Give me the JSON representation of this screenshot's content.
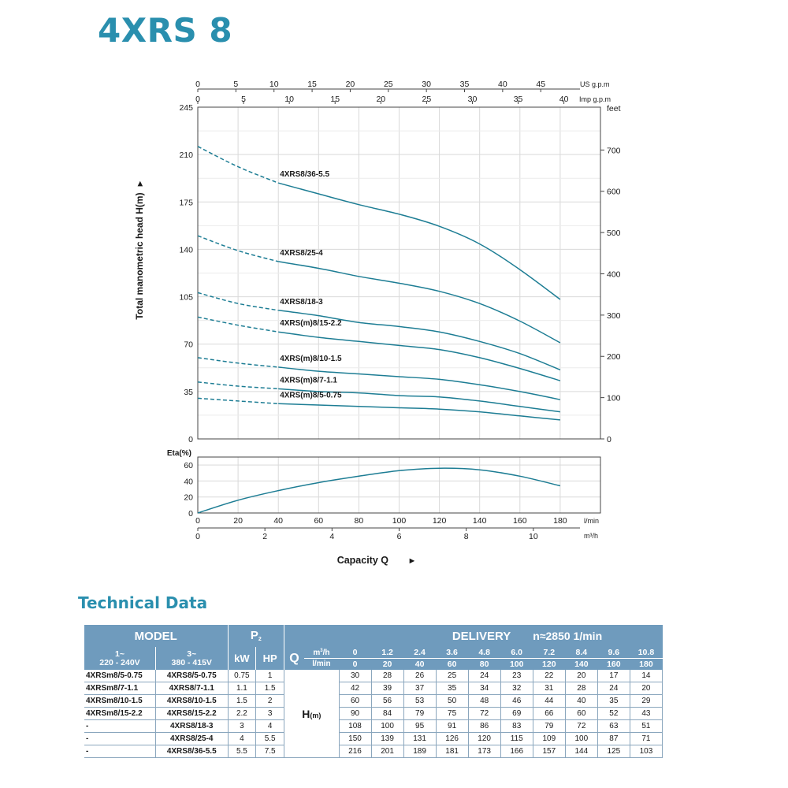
{
  "page": {
    "title": "4XRS 8",
    "section_title": "Technical Data"
  },
  "chart_data": {
    "type": "line",
    "head_chart": {
      "ylabel": "Total manometric head H(m)",
      "ylabel_arrow": "►",
      "ylim": [
        0,
        245
      ],
      "y_ticks": [
        0,
        35,
        70,
        105,
        140,
        175,
        210,
        245
      ],
      "right_axis_label": "feet",
      "right_ticks": [
        0,
        100,
        200,
        300,
        400,
        500,
        600,
        700
      ],
      "top_axes": [
        {
          "label": "US g.p.m",
          "ticks": [
            0,
            5,
            10,
            15,
            20,
            25,
            30,
            35,
            40,
            45
          ],
          "per_lmin": 0.26417
        },
        {
          "label": "Imp g.p.m",
          "ticks": [
            0,
            5,
            10,
            15,
            20,
            25,
            30,
            35,
            40
          ],
          "per_lmin": 0.21997
        }
      ],
      "xlim_lmin": [
        0,
        200
      ],
      "dashed_until_lmin": 40,
      "grid": true,
      "x_lmin": [
        0,
        20,
        40,
        60,
        80,
        100,
        120,
        140,
        160,
        180
      ],
      "series": [
        {
          "name": "4XRS8/36-5.5",
          "values": [
            216,
            201,
            189,
            181,
            173,
            166,
            157,
            144,
            125,
            103
          ]
        },
        {
          "name": "4XRS8/25-4",
          "values": [
            150,
            139,
            131,
            126,
            120,
            115,
            109,
            100,
            87,
            71
          ]
        },
        {
          "name": "4XRS8/18-3",
          "values": [
            108,
            100,
            95,
            91,
            86,
            83,
            79,
            72,
            63,
            51
          ]
        },
        {
          "name": "4XRS(m)8/15-2.2",
          "values": [
            90,
            84,
            79,
            75,
            72,
            69,
            66,
            60,
            52,
            43
          ]
        },
        {
          "name": "4XRS(m)8/10-1.5",
          "values": [
            60,
            56,
            53,
            50,
            48,
            46,
            44,
            40,
            35,
            29
          ]
        },
        {
          "name": "4XRS(m)8/7-1.1",
          "values": [
            42,
            39,
            37,
            35,
            34,
            32,
            31,
            28,
            24,
            20
          ]
        },
        {
          "name": "4XRS(m)8/5-0.75",
          "values": [
            30,
            28,
            26,
            25,
            24,
            23,
            22,
            20,
            17,
            14
          ]
        }
      ]
    },
    "eta_chart": {
      "ylabel": "Eta(%)",
      "ylim": [
        0,
        70
      ],
      "y_ticks": [
        0,
        20,
        40,
        60
      ],
      "x_lmin": [
        0,
        20,
        40,
        60,
        80,
        100,
        120,
        140,
        160,
        180
      ],
      "values": [
        0,
        16,
        28,
        38,
        46,
        53,
        56,
        54,
        46,
        34
      ]
    },
    "x_axis": {
      "lmin_label": "l/min",
      "lmin_ticks": [
        0,
        20,
        40,
        60,
        80,
        100,
        120,
        140,
        160,
        180
      ],
      "m3h_label": "m³/h",
      "m3h_ticks": [
        0,
        2,
        4,
        6,
        8,
        10
      ],
      "xlabel": "Capacity Q",
      "xlabel_arrow": "►"
    },
    "colors": {
      "curve": "#1d7d94",
      "grid": "#d9d9d9",
      "axis": "#444444",
      "header": "#6f9bbd"
    }
  },
  "table": {
    "model_header": "MODEL",
    "p2_header": "P",
    "p2_sub": "2",
    "delivery_header": "DELIVERY",
    "speed_header": "n≈2850 1/min",
    "single_phase": "1~",
    "single_phase_voltage": "220 - 240V",
    "three_phase": "3~",
    "three_phase_voltage": "380 - 415V",
    "kw": "kW",
    "hp": "HP",
    "q": "Q",
    "unit_m3h": "m",
    "unit_m3h_sup": "3",
    "unit_m3h_suffix": "/h",
    "unit_lmin": "l/min",
    "h_label": "H",
    "h_unit": "(m)",
    "q_m3h": [
      "0",
      "1.2",
      "2.4",
      "3.6",
      "4.8",
      "6.0",
      "7.2",
      "8.4",
      "9.6",
      "10.8"
    ],
    "q_lmin": [
      "0",
      "20",
      "40",
      "60",
      "80",
      "100",
      "120",
      "140",
      "160",
      "180"
    ],
    "rows": [
      {
        "m1": "4XRSm8/5-0.75",
        "m3": "4XRS8/5-0.75",
        "kw": "0.75",
        "hp": "1",
        "h": [
          "30",
          "28",
          "26",
          "25",
          "24",
          "23",
          "22",
          "20",
          "17",
          "14"
        ]
      },
      {
        "m1": "4XRSm8/7-1.1",
        "m3": "4XRS8/7-1.1",
        "kw": "1.1",
        "hp": "1.5",
        "h": [
          "42",
          "39",
          "37",
          "35",
          "34",
          "32",
          "31",
          "28",
          "24",
          "20"
        ]
      },
      {
        "m1": "4XRSm8/10-1.5",
        "m3": "4XRS8/10-1.5",
        "kw": "1.5",
        "hp": "2",
        "h": [
          "60",
          "56",
          "53",
          "50",
          "48",
          "46",
          "44",
          "40",
          "35",
          "29"
        ]
      },
      {
        "m1": "4XRSm8/15-2.2",
        "m3": "4XRS8/15-2.2",
        "kw": "2.2",
        "hp": "3",
        "h": [
          "90",
          "84",
          "79",
          "75",
          "72",
          "69",
          "66",
          "60",
          "52",
          "43"
        ]
      },
      {
        "m1": "-",
        "m3": "4XRS8/18-3",
        "kw": "3",
        "hp": "4",
        "h": [
          "108",
          "100",
          "95",
          "91",
          "86",
          "83",
          "79",
          "72",
          "63",
          "51"
        ]
      },
      {
        "m1": "-",
        "m3": "4XRS8/25-4",
        "kw": "4",
        "hp": "5.5",
        "h": [
          "150",
          "139",
          "131",
          "126",
          "120",
          "115",
          "109",
          "100",
          "87",
          "71"
        ]
      },
      {
        "m1": "-",
        "m3": "4XRS8/36-5.5",
        "kw": "5.5",
        "hp": "7.5",
        "h": [
          "216",
          "201",
          "189",
          "181",
          "173",
          "166",
          "157",
          "144",
          "125",
          "103"
        ]
      }
    ]
  }
}
